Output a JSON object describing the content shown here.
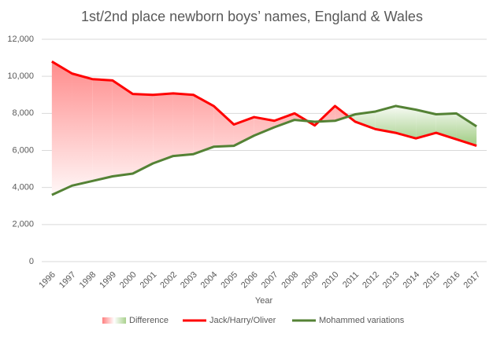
{
  "chart_data": {
    "type": "line",
    "title": "1st/2nd place newborn boys’ names, England & Wales",
    "x_label": "Year",
    "categories": [
      "1996",
      "1997",
      "1998",
      "1999",
      "2000",
      "2001",
      "2002",
      "2003",
      "2004",
      "2005",
      "2006",
      "2007",
      "2008",
      "2009",
      "2010",
      "2011",
      "2012",
      "2013",
      "2014",
      "2015",
      "2016",
      "2017"
    ],
    "series": [
      {
        "name": "Jack/Harry/Oliver",
        "color": "#ff0000",
        "values": [
          10800,
          10150,
          9850,
          9780,
          9050,
          9000,
          9080,
          9000,
          8400,
          7400,
          7800,
          7600,
          8000,
          7350,
          8400,
          7550,
          7150,
          6950,
          6650,
          6950,
          6600,
          6250
        ]
      },
      {
        "name": "Mohammed variations",
        "color": "#548235",
        "values": [
          3600,
          4100,
          4350,
          4600,
          4750,
          5300,
          5700,
          5800,
          6200,
          6250,
          6800,
          7250,
          7650,
          7550,
          7600,
          7950,
          8100,
          8400,
          8200,
          7950,
          8000,
          7300
        ]
      }
    ],
    "difference": {
      "name": "Difference",
      "colors": [
        "#ff8080",
        "#a9d18e"
      ]
    },
    "ylim": [
      0,
      12000
    ],
    "yticks": [
      0,
      {
        "value": 2000,
        "label": "2,000"
      },
      {
        "value": 4000,
        "label": "4,000"
      },
      {
        "value": 6000,
        "label": "6,000"
      },
      {
        "value": 8000,
        "label": "8,000"
      },
      {
        "value": 10000,
        "label": "10,000"
      },
      {
        "value": 12000,
        "label": "12,000"
      }
    ],
    "grid": true,
    "legend": "bottom"
  }
}
